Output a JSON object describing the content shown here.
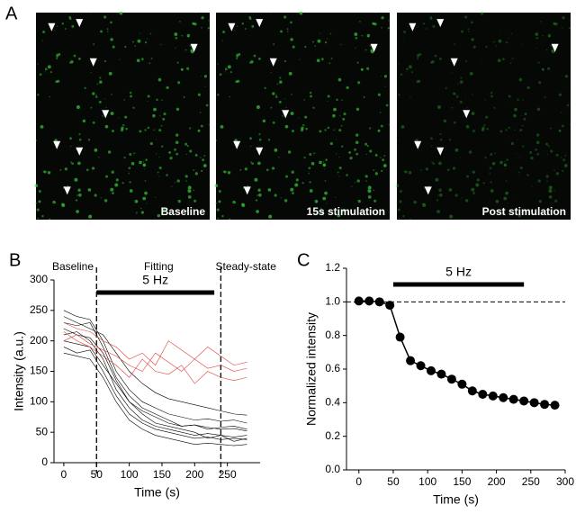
{
  "panel_a": {
    "label": "A",
    "images": [
      "Baseline",
      "15s stimulation",
      "Post stimulation"
    ]
  },
  "chart_data": [
    {
      "type": "line",
      "panel_label": "B",
      "xlabel": "Time (s)",
      "ylabel": "Intensity (a.u.)",
      "phase_labels": [
        "Baseline",
        "Fitting",
        "Steady-state"
      ],
      "vlines": [
        50,
        240
      ],
      "stim": {
        "label": "5 Hz",
        "start": 50,
        "end": 230
      },
      "x": [
        0,
        20,
        40,
        60,
        80,
        100,
        120,
        140,
        160,
        180,
        200,
        220,
        240,
        260,
        280
      ],
      "series": [
        {
          "color": "#000000",
          "values": [
            250,
            240,
            235,
            200,
            150,
            120,
            100,
            90,
            80,
            75,
            70,
            72,
            68,
            70,
            65
          ]
        },
        {
          "color": "#000000",
          "values": [
            230,
            225,
            230,
            190,
            140,
            110,
            90,
            80,
            70,
            60,
            62,
            55,
            58,
            60,
            55
          ]
        },
        {
          "color": "#000000",
          "values": [
            210,
            215,
            200,
            170,
            120,
            90,
            70,
            60,
            55,
            50,
            45,
            48,
            45,
            42,
            45
          ]
        },
        {
          "color": "#000000",
          "values": [
            200,
            195,
            190,
            160,
            130,
            100,
            85,
            75,
            65,
            60,
            62,
            58,
            55,
            56,
            52
          ]
        },
        {
          "color": "#000000",
          "values": [
            190,
            180,
            185,
            150,
            110,
            80,
            65,
            55,
            50,
            45,
            40,
            42,
            38,
            40,
            38
          ]
        },
        {
          "color": "#000000",
          "values": [
            240,
            230,
            220,
            210,
            180,
            150,
            130,
            115,
            105,
            100,
            95,
            90,
            85,
            80,
            78
          ]
        },
        {
          "color": "#000000",
          "values": [
            220,
            210,
            205,
            180,
            135,
            100,
            80,
            65,
            60,
            55,
            50,
            40,
            45,
            35,
            40
          ]
        },
        {
          "color": "#000000",
          "values": [
            180,
            175,
            170,
            140,
            100,
            70,
            55,
            45,
            40,
            35,
            30,
            32,
            30,
            28,
            30
          ]
        },
        {
          "color": "#e0403a",
          "values": [
            230,
            220,
            215,
            200,
            190,
            170,
            180,
            160,
            200,
            185,
            170,
            190,
            175,
            160,
            165
          ]
        },
        {
          "color": "#e0403a",
          "values": [
            200,
            210,
            195,
            185,
            175,
            160,
            150,
            180,
            165,
            150,
            170,
            155,
            160,
            150,
            155
          ]
        },
        {
          "color": "#e0403a",
          "values": [
            215,
            200,
            190,
            175,
            160,
            140,
            170,
            150,
            145,
            160,
            130,
            150,
            140,
            135,
            140
          ]
        }
      ],
      "xlim": [
        -15,
        300
      ],
      "ylim": [
        0,
        300
      ],
      "xticks": [
        0,
        50,
        100,
        150,
        200,
        250
      ],
      "yticks": [
        0,
        50,
        100,
        150,
        200,
        250,
        300
      ]
    },
    {
      "type": "line",
      "panel_label": "C",
      "xlabel": "Time (s)",
      "ylabel": "Normalized intensity",
      "reference_line": 1.0,
      "markers": true,
      "stim": {
        "label": "5 Hz",
        "start": 50,
        "end": 240
      },
      "x": [
        0,
        15,
        30,
        45,
        60,
        75,
        90,
        105,
        120,
        135,
        150,
        165,
        180,
        195,
        210,
        225,
        240,
        255,
        270,
        285
      ],
      "series": [
        {
          "color": "#000000",
          "values": [
            1.005,
            1.005,
            1.0,
            0.98,
            0.79,
            0.65,
            0.62,
            0.59,
            0.57,
            0.54,
            0.51,
            0.47,
            0.45,
            0.44,
            0.43,
            0.42,
            0.41,
            0.4,
            0.39,
            0.385
          ]
        }
      ],
      "xlim": [
        -18,
        300
      ],
      "ylim": [
        0,
        1.2
      ],
      "xticks": [
        0,
        50,
        100,
        150,
        200,
        250,
        300
      ],
      "yticks": [
        {
          "value": 0,
          "label": "0.0"
        },
        {
          "value": 0.2,
          "label": "0.2"
        },
        {
          "value": 0.4,
          "label": "0.4"
        },
        {
          "value": 0.6,
          "label": "0.6"
        },
        {
          "value": 0.8,
          "label": "0.8"
        },
        {
          "value": 1.0,
          "label": "1.0"
        },
        {
          "value": 1.2,
          "label": "1.2"
        }
      ]
    }
  ]
}
